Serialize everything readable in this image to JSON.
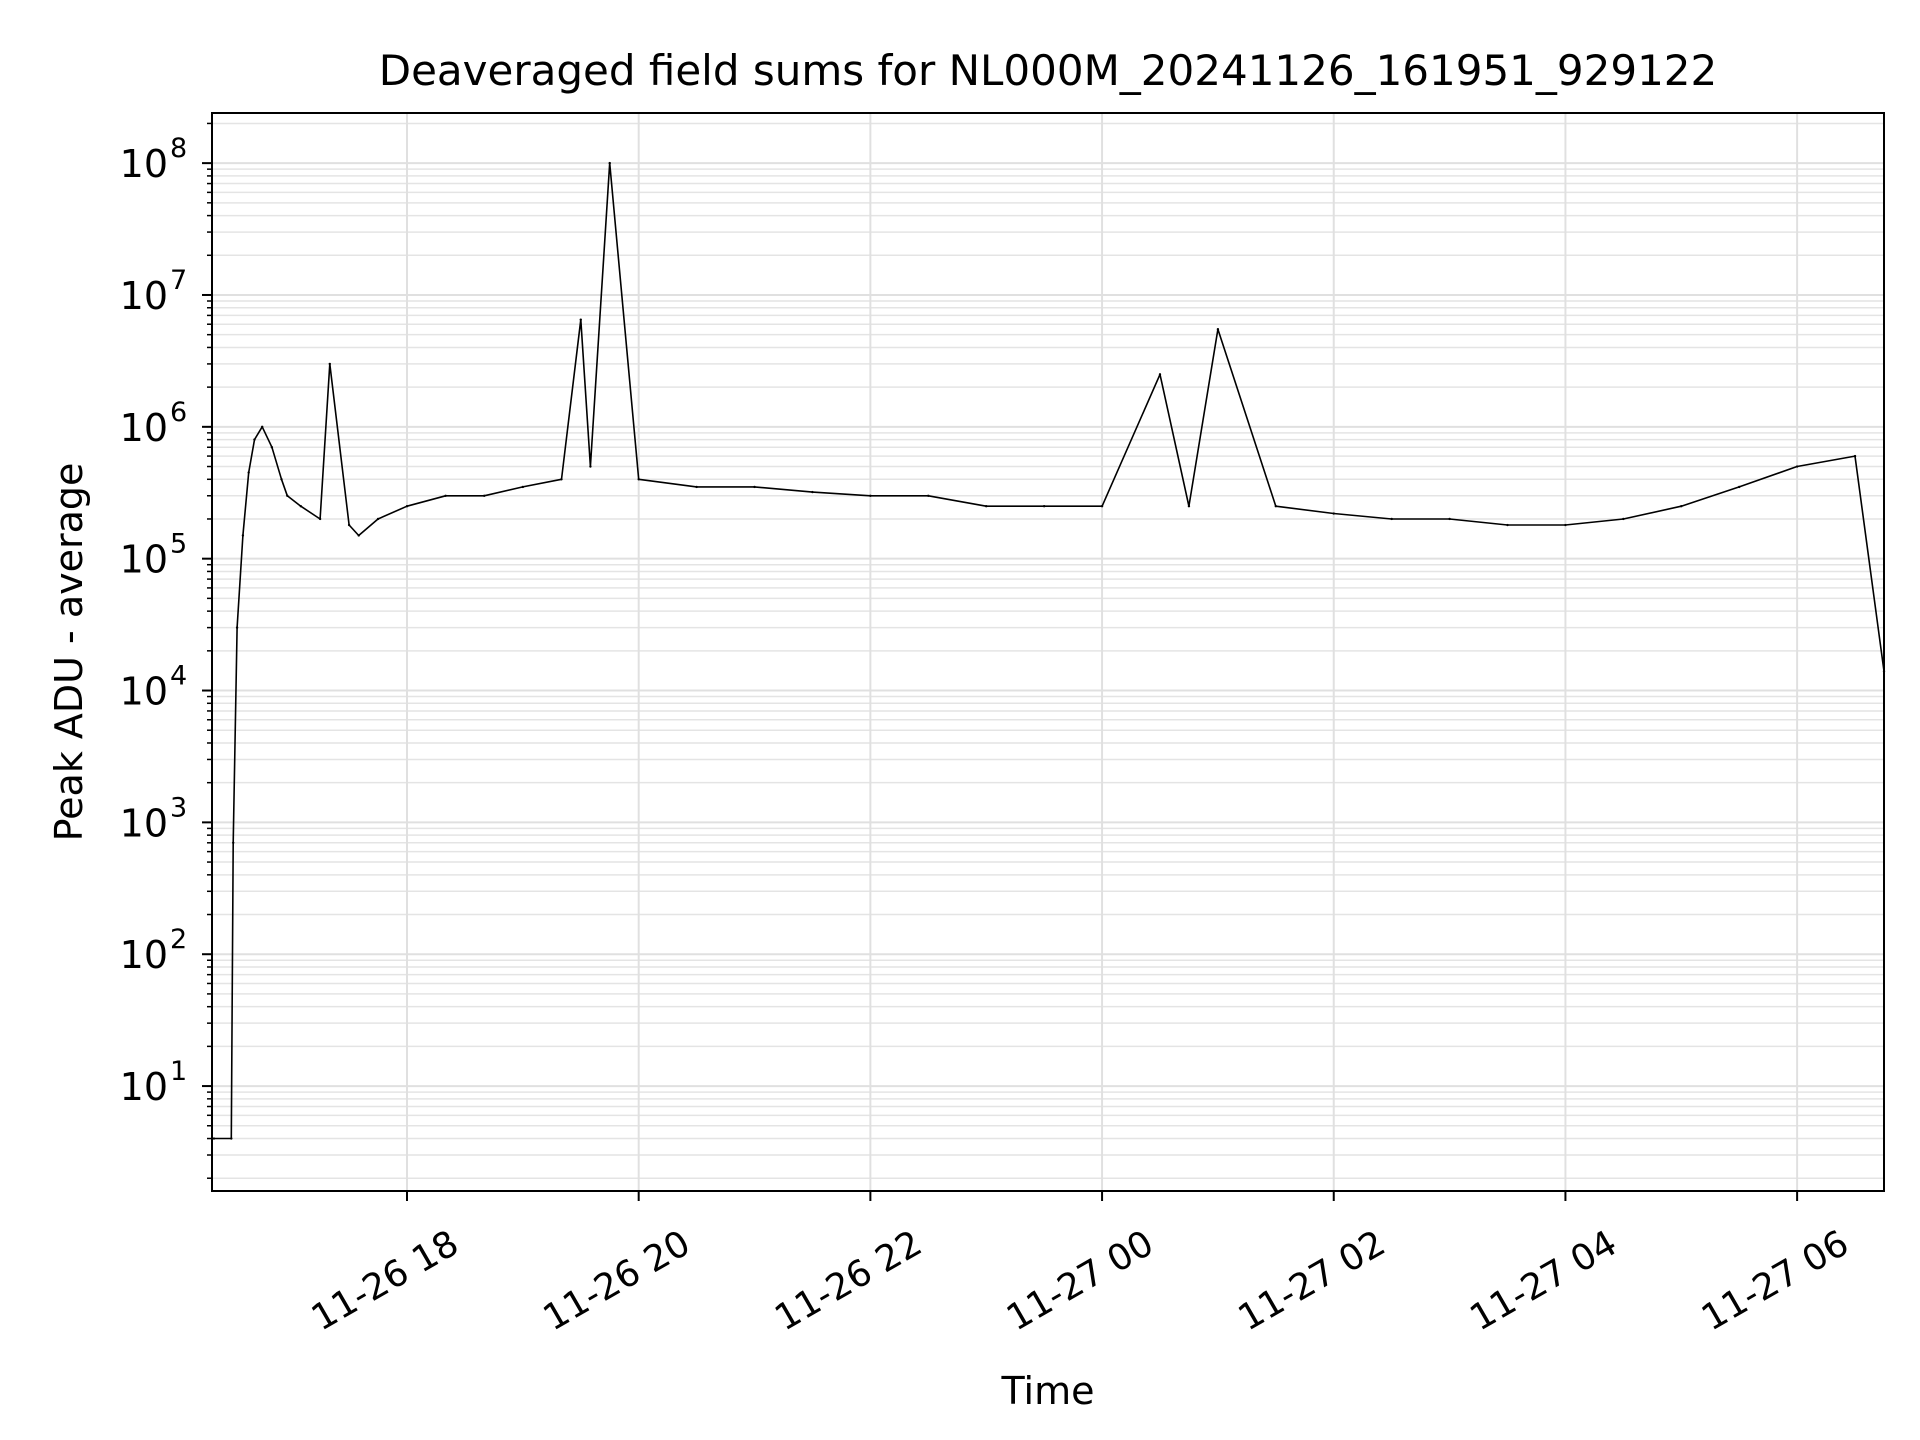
{
  "chart_data": {
    "type": "line",
    "title": "Deaveraged field sums for NL000M_20241126_161951_929122",
    "xlabel": "Time",
    "ylabel": "Peak ADU - average",
    "yscale": "log",
    "ylim": [
      1.6,
      240000000.0
    ],
    "xlim": [
      "2024-11-26 16:19",
      "2024-11-27 06:45"
    ],
    "grid": true,
    "legend": "none",
    "x_ticks": [
      "11-26 18",
      "11-26 20",
      "11-26 22",
      "11-27 00",
      "11-27 02",
      "11-27 04",
      "11-27 06"
    ],
    "y_ticks": [
      "10^1",
      "10^2",
      "10^3",
      "10^4",
      "10^5",
      "10^6",
      "10^7",
      "10^8"
    ],
    "series": [
      {
        "color": "#000000",
        "x": [
          "2024-11-26 16:20",
          "2024-11-26 16:29",
          "2024-11-26 16:30",
          "2024-11-26 16:32",
          "2024-11-26 16:35",
          "2024-11-26 16:38",
          "2024-11-26 16:41",
          "2024-11-26 16:45",
          "2024-11-26 16:50",
          "2024-11-26 16:55",
          "2024-11-26 16:58",
          "2024-11-26 17:05",
          "2024-11-26 17:15",
          "2024-11-26 17:20",
          "2024-11-26 17:30",
          "2024-11-26 17:35",
          "2024-11-26 17:45",
          "2024-11-26 18:00",
          "2024-11-26 18:20",
          "2024-11-26 18:40",
          "2024-11-26 19:00",
          "2024-11-26 19:20",
          "2024-11-26 19:30",
          "2024-11-26 19:35",
          "2024-11-26 19:45",
          "2024-11-26 20:00",
          "2024-11-26 20:30",
          "2024-11-26 21:00",
          "2024-11-26 21:30",
          "2024-11-26 22:00",
          "2024-11-26 22:30",
          "2024-11-26 23:00",
          "2024-11-26 23:30",
          "2024-11-27 00:00",
          "2024-11-27 00:30",
          "2024-11-27 00:45",
          "2024-11-27 01:00",
          "2024-11-27 01:30",
          "2024-11-27 02:00",
          "2024-11-27 02:30",
          "2024-11-27 03:00",
          "2024-11-27 03:30",
          "2024-11-27 04:00",
          "2024-11-27 04:30",
          "2024-11-27 05:00",
          "2024-11-27 05:30",
          "2024-11-27 06:00",
          "2024-11-27 06:30",
          "2024-11-27 06:45"
        ],
        "values": [
          4,
          4,
          700,
          30000,
          150000,
          450000,
          800000,
          1000000,
          700000,
          400000,
          300000,
          250000,
          200000,
          3000000,
          180000,
          150000,
          200000,
          250000,
          300000,
          300000,
          350000,
          400000,
          6500000,
          500000,
          100000000,
          400000,
          350000,
          350000,
          320000,
          300000,
          300000,
          250000,
          250000,
          250000,
          2500000,
          250000,
          5500000,
          250000,
          220000,
          200000,
          200000,
          180000,
          180000,
          200000,
          250000,
          350000,
          500000,
          600000,
          14000
        ]
      }
    ]
  }
}
